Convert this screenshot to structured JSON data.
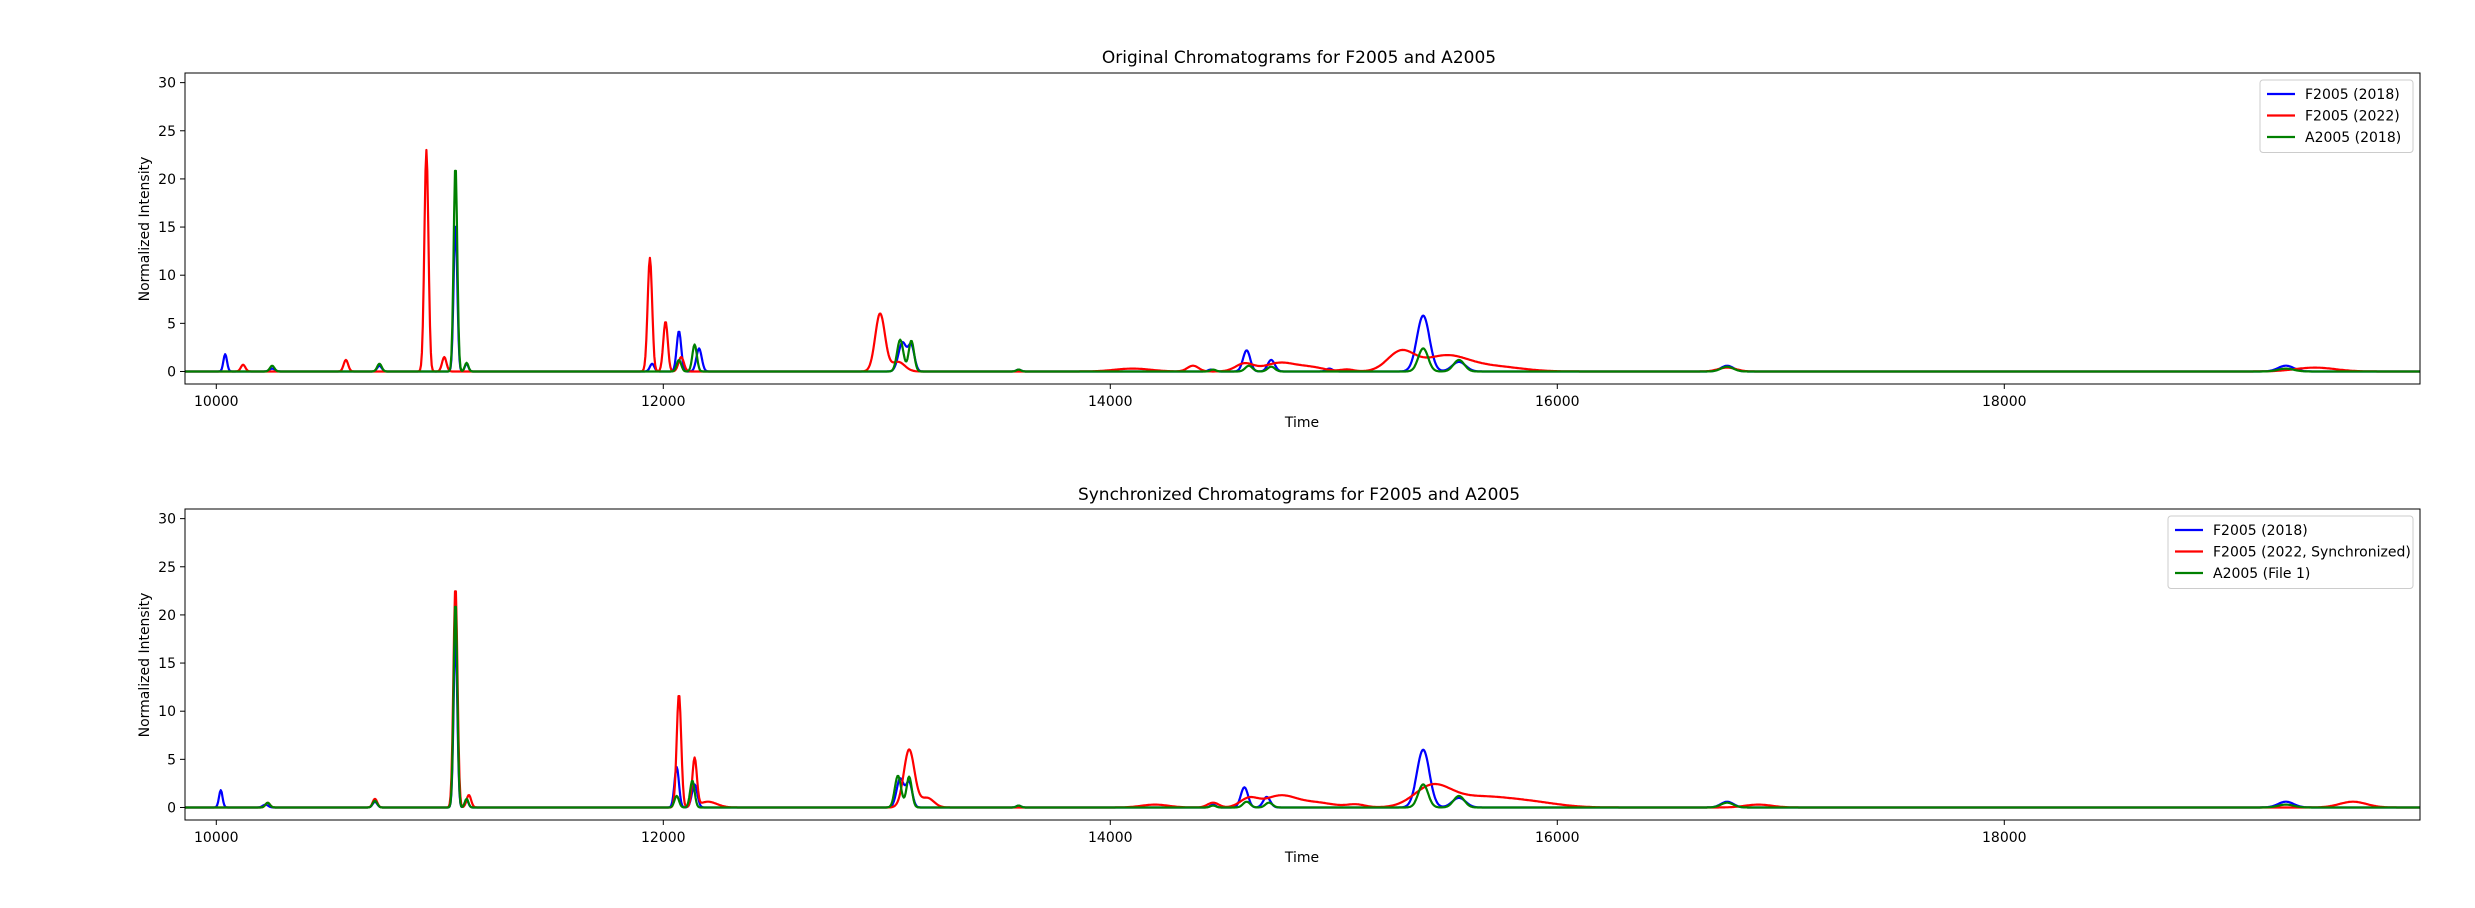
{
  "chart_data": [
    {
      "type": "line",
      "title": "Original Chromatograms for F2005 and A2005",
      "xlabel": "Time",
      "ylabel": "Normalized Intensity",
      "xlim": [
        9860,
        19860
      ],
      "ylim": [
        -1.3,
        31.0
      ],
      "xticks": [
        10000,
        12000,
        14000,
        16000,
        18000
      ],
      "yticks": [
        0,
        5,
        10,
        15,
        20,
        25,
        30
      ],
      "grid": false,
      "legend_position": "top-right",
      "series": [
        {
          "name": "F2005 (2018)",
          "color": "#0000ff",
          "peaks": [
            [
              10040,
              1.8,
              8
            ],
            [
              10250,
              0.3,
              12
            ],
            [
              10730,
              0.6,
              10
            ],
            [
              11070,
              15.5,
              8
            ],
            [
              11120,
              0.8,
              8
            ],
            [
              11950,
              0.8,
              10
            ],
            [
              12070,
              4.2,
              10
            ],
            [
              12160,
              2.4,
              12
            ],
            [
              13070,
              3.0,
              18
            ],
            [
              13110,
              2.6,
              14
            ],
            [
              13590,
              0.2,
              10
            ],
            [
              14450,
              0.2,
              12
            ],
            [
              14610,
              2.2,
              16
            ],
            [
              14720,
              1.2,
              16
            ],
            [
              14980,
              0.3,
              14
            ],
            [
              15400,
              5.8,
              28
            ],
            [
              15560,
              1.0,
              30
            ],
            [
              16760,
              0.6,
              28
            ],
            [
              19260,
              0.6,
              35
            ]
          ]
        },
        {
          "name": "F2005 (2022)",
          "color": "#ff0000",
          "peaks": [
            [
              10120,
              0.7,
              10
            ],
            [
              10580,
              1.2,
              10
            ],
            [
              10940,
              23.0,
              9
            ],
            [
              11020,
              1.5,
              10
            ],
            [
              11940,
              11.8,
              10
            ],
            [
              12010,
              5.2,
              10
            ],
            [
              12080,
              1.5,
              12
            ],
            [
              12970,
              6.0,
              22
            ],
            [
              13050,
              1.0,
              30
            ],
            [
              14100,
              0.3,
              80
            ],
            [
              14370,
              0.6,
              25
            ],
            [
              14600,
              0.8,
              40
            ],
            [
              14760,
              0.9,
              70
            ],
            [
              14900,
              0.4,
              60
            ],
            [
              15060,
              0.2,
              30
            ],
            [
              15300,
              2.0,
              60
            ],
            [
              15500,
              1.6,
              100
            ],
            [
              15720,
              0.5,
              120
            ],
            [
              16760,
              0.4,
              40
            ],
            [
              19390,
              0.4,
              90
            ]
          ]
        },
        {
          "name": "A2005 (2018)",
          "color": "#008000",
          "peaks": [
            [
              10250,
              0.6,
              10
            ],
            [
              10730,
              0.8,
              10
            ],
            [
              11070,
              21.5,
              8
            ],
            [
              11120,
              0.9,
              8
            ],
            [
              12070,
              1.2,
              10
            ],
            [
              12140,
              2.8,
              10
            ],
            [
              13060,
              3.3,
              14
            ],
            [
              13110,
              3.2,
              12
            ],
            [
              13590,
              0.2,
              10
            ],
            [
              14460,
              0.2,
              12
            ],
            [
              14620,
              0.6,
              16
            ],
            [
              14720,
              0.5,
              16
            ],
            [
              15400,
              2.4,
              22
            ],
            [
              15560,
              1.2,
              24
            ],
            [
              16760,
              0.5,
              28
            ],
            [
              19260,
              0.3,
              35
            ]
          ]
        }
      ]
    },
    {
      "type": "line",
      "title": "Synchronized Chromatograms for F2005 and A2005",
      "xlabel": "Time",
      "ylabel": "Normalized Intensity",
      "xlim": [
        9860,
        19860
      ],
      "ylim": [
        -1.3,
        31.0
      ],
      "xticks": [
        10000,
        12000,
        14000,
        16000,
        18000
      ],
      "yticks": [
        0,
        5,
        10,
        15,
        20,
        25,
        30
      ],
      "grid": false,
      "legend_position": "top-right",
      "series": [
        {
          "name": "F2005 (2018)",
          "color": "#0000ff",
          "peaks": [
            [
              10020,
              1.8,
              8
            ],
            [
              10220,
              0.3,
              12
            ],
            [
              10710,
              0.6,
              10
            ],
            [
              11070,
              18.0,
              8
            ],
            [
              11120,
              0.8,
              8
            ],
            [
              12060,
              4.2,
              10
            ],
            [
              12140,
              2.4,
              12
            ],
            [
              13060,
              3.0,
              16
            ],
            [
              13100,
              2.6,
              14
            ],
            [
              13590,
              0.2,
              10
            ],
            [
              14460,
              0.3,
              12
            ],
            [
              14600,
              2.1,
              16
            ],
            [
              14700,
              1.1,
              16
            ],
            [
              15400,
              6.0,
              28
            ],
            [
              15560,
              1.0,
              30
            ],
            [
              16760,
              0.6,
              28
            ],
            [
              19260,
              0.6,
              35
            ]
          ]
        },
        {
          "name": "F2005 (2022, Synchronized)",
          "color": "#ff0000",
          "peaks": [
            [
              10230,
              0.5,
              10
            ],
            [
              10710,
              0.9,
              10
            ],
            [
              11070,
              23.0,
              9
            ],
            [
              11130,
              1.3,
              10
            ],
            [
              12070,
              11.8,
              10
            ],
            [
              12140,
              5.0,
              10
            ],
            [
              12200,
              0.6,
              40
            ],
            [
              13100,
              6.0,
              24
            ],
            [
              13180,
              1.0,
              30
            ],
            [
              14200,
              0.3,
              60
            ],
            [
              14460,
              0.5,
              25
            ],
            [
              14620,
              0.9,
              40
            ],
            [
              14760,
              1.2,
              70
            ],
            [
              14920,
              0.5,
              80
            ],
            [
              15100,
              0.3,
              40
            ],
            [
              15440,
              2.0,
              80
            ],
            [
              15650,
              1.1,
              150
            ],
            [
              15900,
              0.4,
              120
            ],
            [
              16900,
              0.3,
              60
            ],
            [
              19560,
              0.6,
              60
            ]
          ]
        },
        {
          "name": "A2005 (File 1)",
          "color": "#008000",
          "peaks": [
            [
              10230,
              0.5,
              10
            ],
            [
              10710,
              0.7,
              10
            ],
            [
              11070,
              21.5,
              8
            ],
            [
              11120,
              0.9,
              8
            ],
            [
              12060,
              1.2,
              10
            ],
            [
              12130,
              2.8,
              10
            ],
            [
              13050,
              3.3,
              14
            ],
            [
              13100,
              3.2,
              12
            ],
            [
              13590,
              0.2,
              10
            ],
            [
              14460,
              0.2,
              12
            ],
            [
              14610,
              0.6,
              16
            ],
            [
              14710,
              0.5,
              16
            ],
            [
              15400,
              2.4,
              22
            ],
            [
              15560,
              1.2,
              24
            ],
            [
              16760,
              0.5,
              28
            ],
            [
              19260,
              0.3,
              35
            ]
          ]
        }
      ]
    }
  ]
}
